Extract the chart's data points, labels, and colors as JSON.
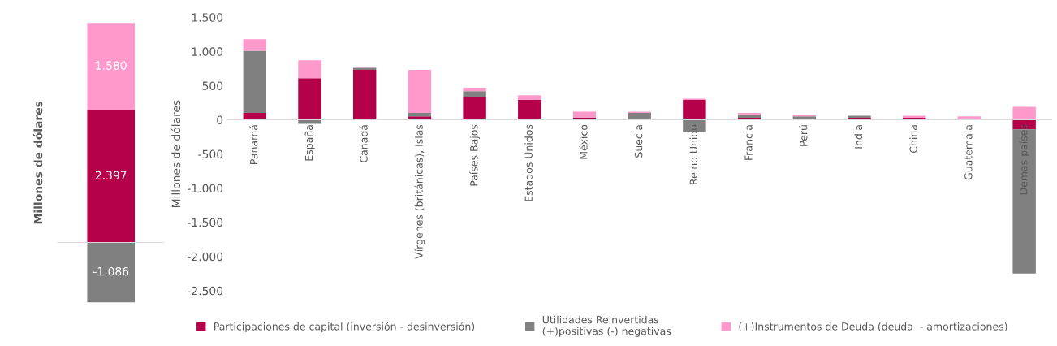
{
  "chart_data": [
    {
      "type": "bar",
      "stacked": true,
      "ylabel": "Millones de dólares",
      "categories": [
        null
      ],
      "tick_labels": false,
      "data_labels": true,
      "grid": false,
      "legend": false,
      "series": [
        {
          "color": "#b5004a",
          "values": [
            2397
          ],
          "value_labels": [
            "2.397"
          ]
        },
        {
          "color": "#808080",
          "values": [
            -1086
          ],
          "value_labels": [
            "-1.086"
          ]
        },
        {
          "color": "#ff99cc",
          "values": [
            1580
          ],
          "value_labels": [
            "1.580"
          ]
        }
      ]
    },
    {
      "type": "bar",
      "stacked": true,
      "ylabel": "Millones de dólares",
      "grid": false,
      "legend": "bottom",
      "categories": [
        "Panamá",
        "España",
        "Canadá",
        "Vírgenes (británicas), Islas",
        "Países Bajos",
        "Estados Unidos",
        "México",
        "Suecia",
        "Reino Unido",
        "Francia",
        "Perú",
        "India",
        "China",
        "Guatemala",
        "Demas países"
      ],
      "ylim": [
        -2500,
        1500
      ],
      "yticks": [
        {
          "value": -2500,
          "label": "-2.500"
        },
        {
          "value": -2000,
          "label": "-2.000"
        },
        {
          "value": -1500,
          "label": "-1.500"
        },
        {
          "value": -1000,
          "label": "-1.000"
        },
        {
          "value": -500,
          "label": "-500"
        },
        0,
        {
          "value": 500,
          "label": "500"
        },
        {
          "value": 1000,
          "label": "1.000"
        },
        {
          "value": 1500,
          "label": "1.500"
        }
      ],
      "series": [
        {
          "name": "Participaciones de capital (inversión - desinversión)",
          "color": "#b5004a",
          "values": [
            100,
            610,
            730,
            50,
            330,
            290,
            30,
            0,
            290,
            30,
            0,
            30,
            30,
            0,
            -140
          ]
        },
        {
          "name": "Utilidades Reinvertidas\n(+)positivas (-) negativas",
          "color": "#808080",
          "values": [
            910,
            -60,
            30,
            50,
            90,
            0,
            0,
            100,
            -180,
            50,
            50,
            30,
            0,
            0,
            -2110
          ]
        },
        {
          "name": "(+)Instrumentos de Deuda (deuda  - amortizaciones)",
          "color": "#ff99cc",
          "values": [
            170,
            260,
            20,
            630,
            50,
            70,
            90,
            20,
            20,
            20,
            20,
            0,
            30,
            50,
            190
          ]
        }
      ]
    }
  ]
}
